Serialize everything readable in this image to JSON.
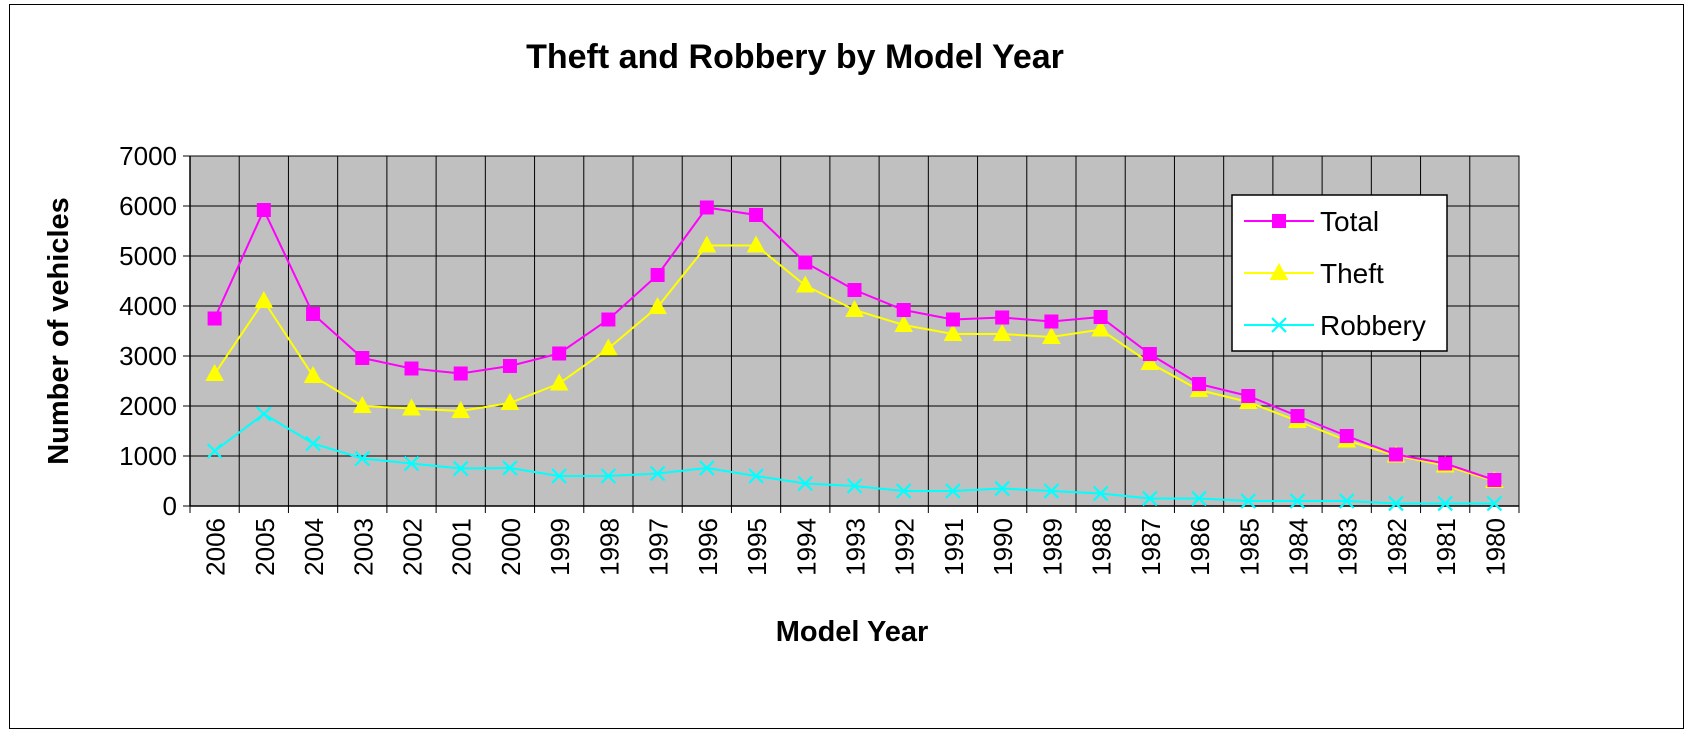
{
  "chart_data": {
    "type": "line",
    "title": "Theft and Robbery by Model Year",
    "xlabel": "Model Year",
    "ylabel": "Number of vehicles",
    "categories": [
      "2006",
      "2005",
      "2004",
      "2003",
      "2002",
      "2001",
      "2000",
      "1999",
      "1998",
      "1997",
      "1996",
      "1995",
      "1994",
      "1993",
      "1992",
      "1991",
      "1990",
      "1989",
      "1988",
      "1987",
      "1986",
      "1985",
      "1984",
      "1983",
      "1982",
      "1981",
      "1980"
    ],
    "y_ticks": [
      "0",
      "1000",
      "2000",
      "3000",
      "4000",
      "5000",
      "6000",
      "7000"
    ],
    "ylim": [
      0,
      7000
    ],
    "grid": true,
    "plot_background": "#c0c0c0",
    "legend_position": "top-right",
    "series": [
      {
        "name": "Total",
        "color": "#ff00ff",
        "marker": "square",
        "values": [
          3750,
          5920,
          3840,
          2960,
          2750,
          2650,
          2800,
          3050,
          3730,
          4620,
          5970,
          5820,
          4870,
          4320,
          3920,
          3730,
          3770,
          3690,
          3780,
          3040,
          2440,
          2200,
          1800,
          1400,
          1030,
          850,
          520
        ]
      },
      {
        "name": "Theft",
        "color": "#ffff00",
        "marker": "triangle",
        "values": [
          2640,
          4100,
          2600,
          2000,
          1950,
          1900,
          2060,
          2450,
          3150,
          3980,
          5210,
          5210,
          4410,
          3920,
          3620,
          3440,
          3440,
          3380,
          3530,
          2860,
          2320,
          2080,
          1700,
          1310,
          1010,
          810,
          500
        ]
      },
      {
        "name": "Robbery",
        "color": "#00ffff",
        "marker": "x",
        "values": [
          1100,
          1840,
          1250,
          950,
          850,
          750,
          760,
          600,
          600,
          650,
          760,
          600,
          450,
          400,
          300,
          300,
          350,
          300,
          250,
          150,
          150,
          100,
          100,
          100,
          50,
          50,
          50
        ]
      }
    ]
  }
}
